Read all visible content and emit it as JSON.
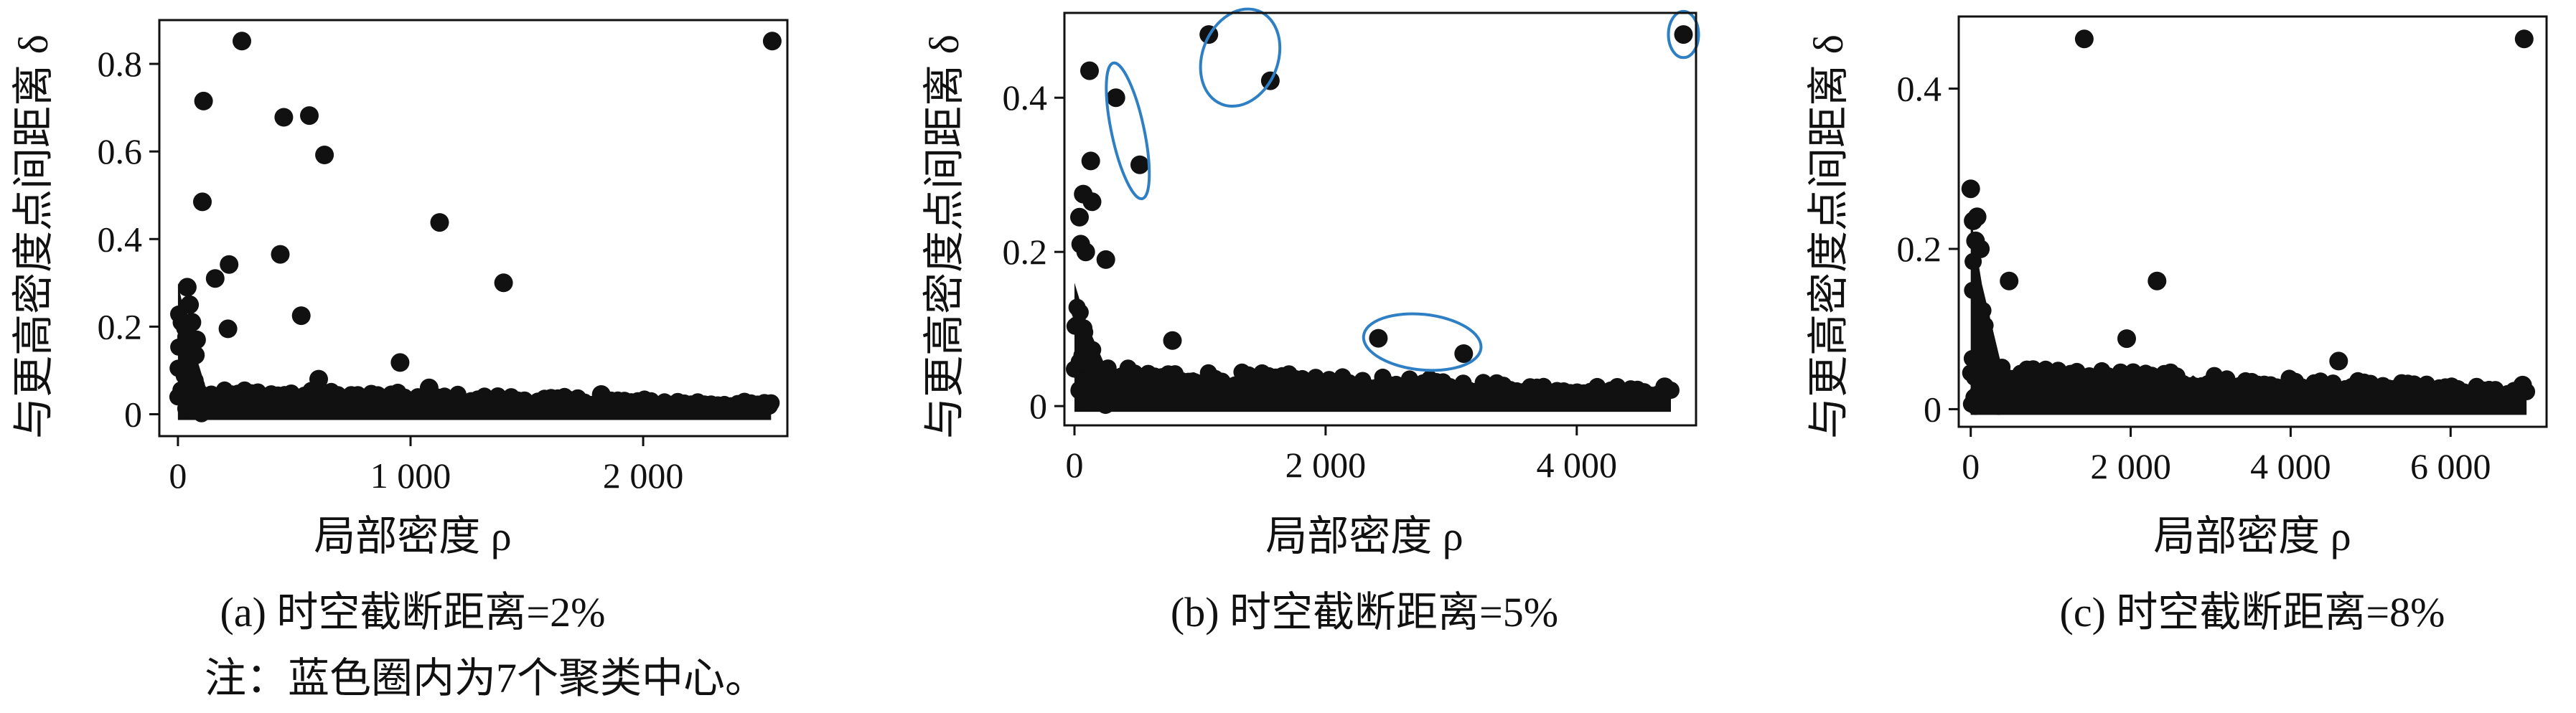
{
  "note": "注：蓝色圈内为7个聚类中心。",
  "colors": {
    "points": "#111111",
    "circle": "#2e7fc3",
    "axis": "#111111",
    "background": "#ffffff"
  },
  "chart_data": [
    {
      "type": "scatter",
      "caption": "(a) 时空截断距离=2%",
      "xlabel": "局部密度 ρ",
      "ylabel": "与更高密度点间距离 δ",
      "xlim": [
        -80,
        2620
      ],
      "ylim": [
        -0.05,
        0.9
      ],
      "xticks": [
        0,
        1000,
        2000
      ],
      "xtick_labels": [
        "0",
        "1 000",
        "2 000"
      ],
      "yticks": [
        0,
        0.2,
        0.4,
        0.6,
        0.8
      ],
      "ytick_labels": [
        "0",
        "0.2",
        "0.4",
        "0.6",
        "0.8"
      ],
      "grid": false,
      "dense_band": [
        {
          "x0": 0,
          "x1": 2550,
          "y0": 0.0,
          "y1": 0.06
        }
      ],
      "dense_wedge": [
        {
          "x0": 0,
          "x1": 120,
          "y0": 0.0,
          "y1": 0.3
        }
      ],
      "points": [
        {
          "x": 275,
          "y": 0.852
        },
        {
          "x": 2555,
          "y": 0.852
        },
        {
          "x": 110,
          "y": 0.715
        },
        {
          "x": 455,
          "y": 0.678
        },
        {
          "x": 565,
          "y": 0.682
        },
        {
          "x": 630,
          "y": 0.592
        },
        {
          "x": 105,
          "y": 0.485
        },
        {
          "x": 1125,
          "y": 0.438
        },
        {
          "x": 440,
          "y": 0.365
        },
        {
          "x": 220,
          "y": 0.342
        },
        {
          "x": 160,
          "y": 0.31
        },
        {
          "x": 1400,
          "y": 0.3
        },
        {
          "x": 530,
          "y": 0.225
        },
        {
          "x": 215,
          "y": 0.195
        },
        {
          "x": 955,
          "y": 0.118
        },
        {
          "x": 75,
          "y": 0.135
        },
        {
          "x": 40,
          "y": 0.29
        },
        {
          "x": 50,
          "y": 0.25
        },
        {
          "x": 60,
          "y": 0.21
        },
        {
          "x": 80,
          "y": 0.17
        },
        {
          "x": 605,
          "y": 0.08
        },
        {
          "x": 1080,
          "y": 0.06
        },
        {
          "x": 1820,
          "y": 0.045
        },
        {
          "x": 2540,
          "y": 0.02
        }
      ],
      "circled": []
    },
    {
      "type": "scatter",
      "caption": "(b) 时空截断距离=5%",
      "xlabel": "局部密度 ρ",
      "ylabel": "与更高密度点间距离 δ",
      "xlim": [
        -80,
        4950
      ],
      "ylim": [
        -0.025,
        0.51
      ],
      "xticks": [
        0,
        2000,
        4000
      ],
      "xtick_labels": [
        "0",
        "2 000",
        "4 000"
      ],
      "yticks": [
        0,
        0.2,
        0.4
      ],
      "ytick_labels": [
        "0",
        "0.2",
        "0.4"
      ],
      "grid": false,
      "dense_band": [
        {
          "x0": 0,
          "x1": 4750,
          "y0": 0.0,
          "y1": 0.05
        }
      ],
      "dense_wedge": [
        {
          "x0": 0,
          "x1": 300,
          "y0": 0.0,
          "y1": 0.16
        }
      ],
      "points": [
        {
          "x": 1070,
          "y": 0.482
        },
        {
          "x": 4850,
          "y": 0.482
        },
        {
          "x": 120,
          "y": 0.435
        },
        {
          "x": 1560,
          "y": 0.422
        },
        {
          "x": 330,
          "y": 0.4
        },
        {
          "x": 130,
          "y": 0.318
        },
        {
          "x": 520,
          "y": 0.313
        },
        {
          "x": 70,
          "y": 0.275
        },
        {
          "x": 140,
          "y": 0.265
        },
        {
          "x": 40,
          "y": 0.245
        },
        {
          "x": 50,
          "y": 0.21
        },
        {
          "x": 90,
          "y": 0.2
        },
        {
          "x": 250,
          "y": 0.19
        },
        {
          "x": 2420,
          "y": 0.088
        },
        {
          "x": 3100,
          "y": 0.068
        },
        {
          "x": 780,
          "y": 0.085
        },
        {
          "x": 4700,
          "y": 0.025
        }
      ],
      "circled": [
        {
          "x": 425,
          "y": 0.357,
          "rx": 130,
          "ry": 0.09,
          "rotate": -12
        },
        {
          "x": 1320,
          "y": 0.452,
          "rx": 300,
          "ry": 0.065,
          "rotate": 22
        },
        {
          "x": 4850,
          "y": 0.482,
          "rx": 120,
          "ry": 0.03,
          "rotate": 0
        },
        {
          "x": 2770,
          "y": 0.083,
          "rx": 470,
          "ry": 0.036,
          "rotate": 6
        }
      ]
    },
    {
      "type": "scatter",
      "caption": "(c) 时空截断距离=8%",
      "xlabel": "局部密度 ρ",
      "ylabel": "与更高密度点间距离 δ",
      "xlim": [
        -150,
        7200
      ],
      "ylim": [
        -0.022,
        0.49
      ],
      "xticks": [
        0,
        2000,
        4000,
        6000
      ],
      "xtick_labels": [
        "0",
        "2 000",
        "4 000",
        "6 000"
      ],
      "yticks": [
        0,
        0.2,
        0.4
      ],
      "ytick_labels": [
        "0",
        "0.2",
        "0.4"
      ],
      "grid": false,
      "dense_band": [
        {
          "x0": 0,
          "x1": 6950,
          "y0": 0.0,
          "y1": 0.055
        }
      ],
      "dense_wedge": [
        {
          "x0": 0,
          "x1": 400,
          "y0": 0.0,
          "y1": 0.24
        }
      ],
      "points": [
        {
          "x": 1420,
          "y": 0.462
        },
        {
          "x": 6920,
          "y": 0.462
        },
        {
          "x": 0,
          "y": 0.275
        },
        {
          "x": 30,
          "y": 0.235
        },
        {
          "x": 80,
          "y": 0.24
        },
        {
          "x": 60,
          "y": 0.21
        },
        {
          "x": 120,
          "y": 0.2
        },
        {
          "x": 2330,
          "y": 0.16
        },
        {
          "x": 480,
          "y": 0.16
        },
        {
          "x": 1950,
          "y": 0.088
        },
        {
          "x": 4600,
          "y": 0.06
        },
        {
          "x": 6900,
          "y": 0.03
        }
      ],
      "circled": []
    }
  ]
}
